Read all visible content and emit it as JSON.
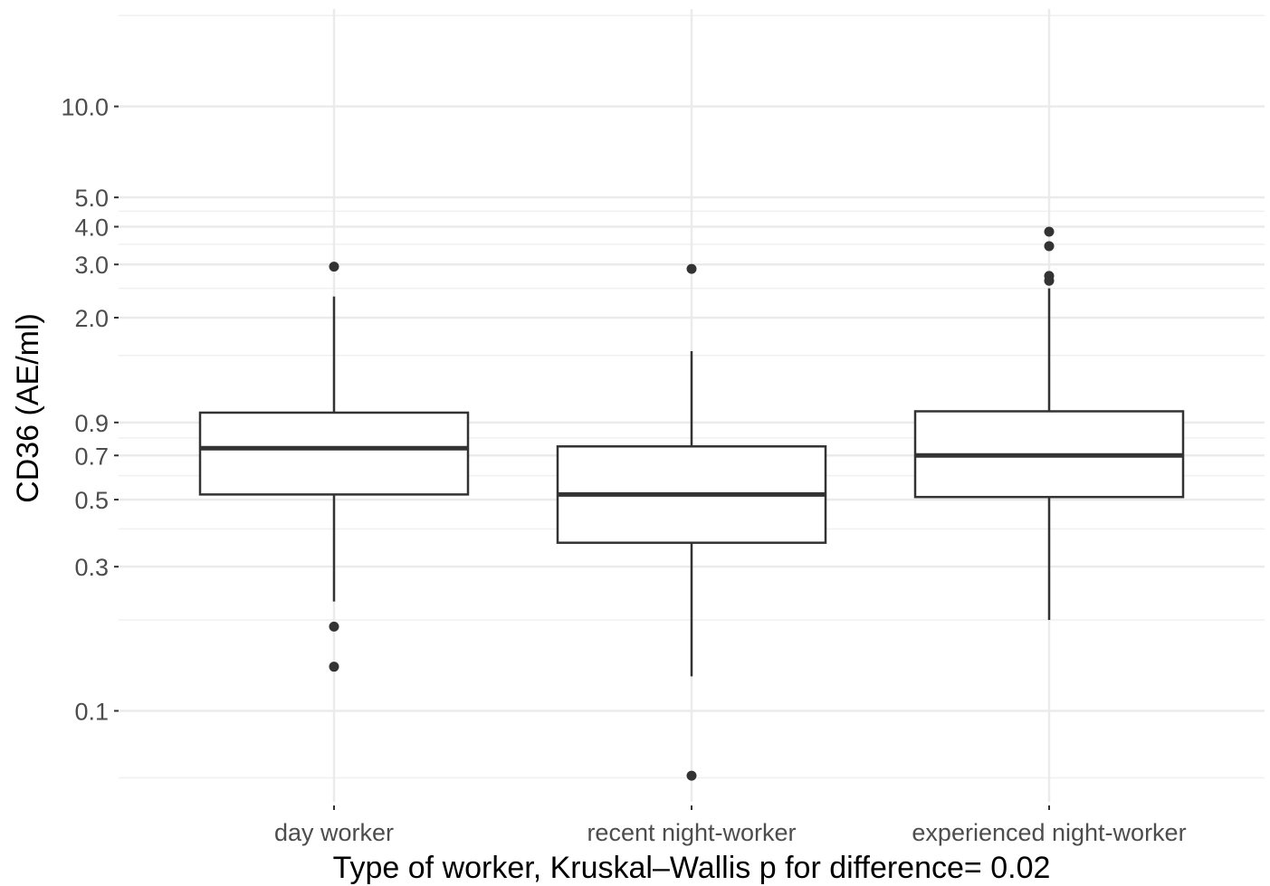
{
  "chart_data": {
    "type": "box",
    "xlabel": "Type of worker, Kruskal–Wallis p for difference= 0.02",
    "ylabel": "CD36 (AE/ml)",
    "y_scale": "log",
    "ylim": [
      0.05,
      21
    ],
    "y_ticks": [
      {
        "value": 0.1,
        "label": "0.1"
      },
      {
        "value": 0.3,
        "label": "0.3"
      },
      {
        "value": 0.5,
        "label": "0.5"
      },
      {
        "value": 0.7,
        "label": "0.7"
      },
      {
        "value": 0.9,
        "label": "0.9"
      },
      {
        "value": 2.0,
        "label": "2.0"
      },
      {
        "value": 3.0,
        "label": "3.0"
      },
      {
        "value": 4.0,
        "label": "4.0"
      },
      {
        "value": 5.0,
        "label": "5.0"
      },
      {
        "value": 10.0,
        "label": "10.0"
      }
    ],
    "minor_grid": [
      0.06,
      0.2,
      0.4,
      0.6,
      0.8,
      1.5,
      2.5,
      3.5,
      4.5,
      20.0
    ],
    "grid": true,
    "categories": [
      "day worker",
      "recent night-worker",
      "experienced night-worker"
    ],
    "boxes": [
      {
        "category": "day worker",
        "whisker_low": 0.23,
        "q1": 0.52,
        "median": 0.74,
        "q3": 0.97,
        "whisker_high": 2.35,
        "outliers": [
          0.19,
          0.14,
          2.95
        ]
      },
      {
        "category": "recent night-worker",
        "whisker_low": 0.13,
        "q1": 0.36,
        "median": 0.52,
        "q3": 0.75,
        "whisker_high": 1.55,
        "outliers": [
          0.061,
          2.9
        ]
      },
      {
        "category": "experienced night-worker",
        "whisker_low": 0.2,
        "q1": 0.51,
        "median": 0.7,
        "q3": 0.98,
        "whisker_high": 2.5,
        "outliers": [
          2.65,
          2.75,
          3.45,
          3.85
        ]
      }
    ]
  }
}
